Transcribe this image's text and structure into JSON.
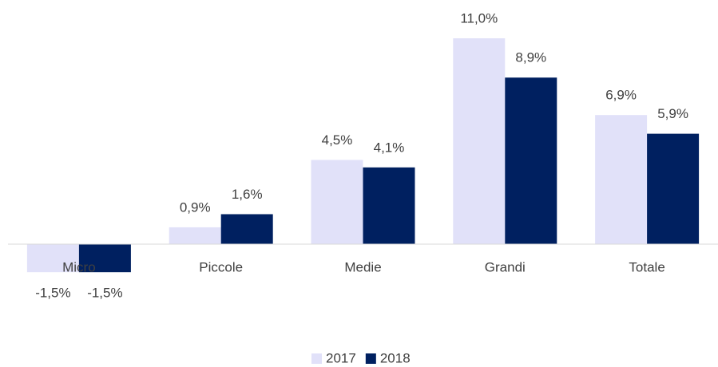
{
  "chart_data": {
    "type": "bar",
    "categories": [
      "Micro",
      "Piccole",
      "Medie",
      "Grandi",
      "Totale"
    ],
    "series": [
      {
        "name": "2017",
        "color": "#e1e1f9",
        "values": [
          -1.5,
          0.9,
          4.5,
          11.0,
          6.9
        ],
        "value_labels": [
          "-1,5%",
          "0,9%",
          "4,5%",
          "11,0%",
          "6,9%"
        ]
      },
      {
        "name": "2018",
        "color": "#002060",
        "values": [
          -1.5,
          1.6,
          4.1,
          8.9,
          5.9
        ],
        "value_labels": [
          "-1,5%",
          "1,6%",
          "4,1%",
          "8,9%",
          "5,9%"
        ]
      }
    ],
    "legend": "bottom"
  }
}
